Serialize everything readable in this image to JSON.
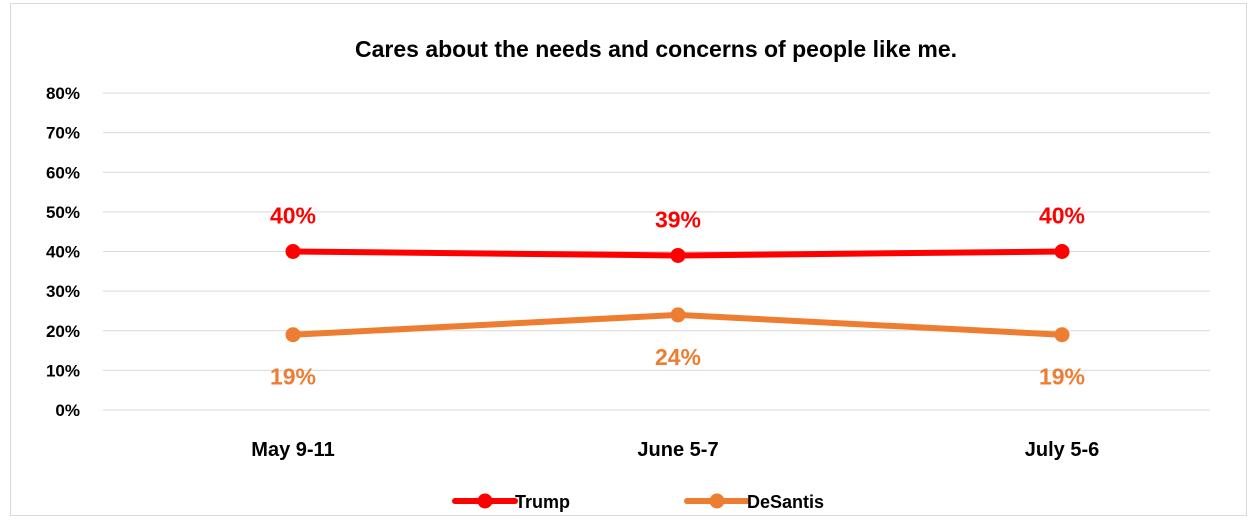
{
  "chart_data": {
    "type": "line",
    "title": "Cares about the needs and concerns of people like me.",
    "categories": [
      "May 9-11",
      "June 5-7",
      "July 5-6"
    ],
    "ylim": [
      0,
      80
    ],
    "yticks": [
      0,
      10,
      20,
      30,
      40,
      50,
      60,
      70,
      80
    ],
    "ytick_labels": [
      "0%",
      "10%",
      "20%",
      "30%",
      "40%",
      "50%",
      "60%",
      "70%",
      "80%"
    ],
    "grid": true,
    "legend_position": "bottom",
    "series": [
      {
        "name": "Trump",
        "color": "#ff0000",
        "values": [
          40,
          39,
          40
        ],
        "data_labels": [
          "40%",
          "39%",
          "40%"
        ],
        "label_placement": "above"
      },
      {
        "name": "DeSantis",
        "color": "#ed7d31",
        "values": [
          19,
          24,
          19
        ],
        "data_labels": [
          "19%",
          "24%",
          "19%"
        ],
        "label_placement": "below"
      }
    ]
  }
}
